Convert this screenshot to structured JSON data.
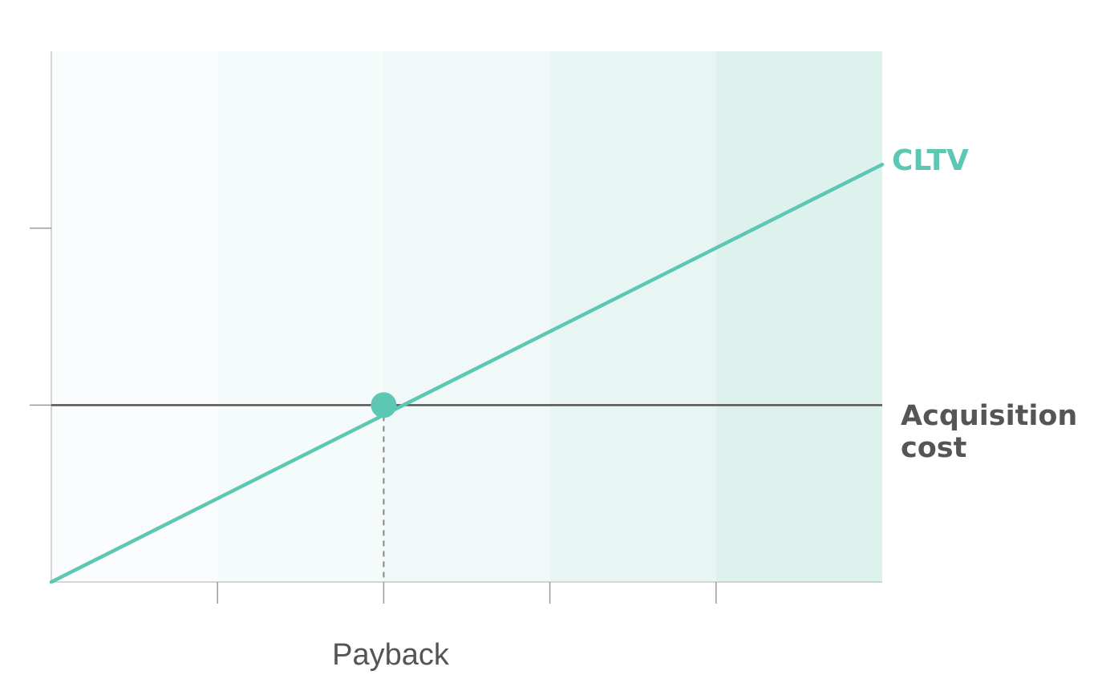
{
  "chart_data": {
    "type": "line",
    "title": "",
    "xlabel": "",
    "ylabel": "",
    "xlim": [
      0,
      5
    ],
    "ylim": [
      0,
      3
    ],
    "x_ticks": [
      1,
      2,
      3,
      4
    ],
    "y_ticks": [
      1,
      2
    ],
    "grid": false,
    "legend": "none",
    "shaded_bands": {
      "edges": [
        0,
        1,
        2,
        3,
        4,
        5
      ],
      "colors": [
        "#fafcfd",
        "#f5fbfb",
        "#f0f9f7",
        "#e8f6f3",
        "#ddf1ed"
      ]
    },
    "series": [
      {
        "name": "CLTV",
        "color": "#5cc7b2",
        "x": [
          0,
          5
        ],
        "y": [
          0,
          2.36
        ]
      },
      {
        "name": "Acquisition cost",
        "color": "#555555",
        "x": [
          0,
          5
        ],
        "y": [
          1,
          1
        ]
      }
    ],
    "labels": {
      "cltv": "CLTV",
      "acquisition_cost_line1": "Acquisition",
      "acquisition_cost_line2": "cost"
    },
    "annotations": [
      {
        "text": "Payback",
        "x": 2,
        "y": 1,
        "marker_color": "#5cc7b2"
      }
    ]
  }
}
